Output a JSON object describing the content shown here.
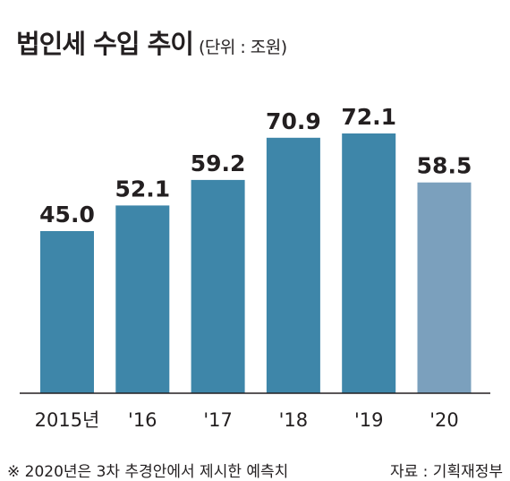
{
  "chart_data": {
    "type": "bar",
    "title": "법인세 수입 추이",
    "unit_note": "(단위 : 조원)",
    "categories": [
      "2015년",
      "'16",
      "'17",
      "'18",
      "'19",
      "'20"
    ],
    "values": [
      45.0,
      52.1,
      59.2,
      70.9,
      72.1,
      58.5
    ],
    "value_labels": [
      "45.0",
      "52.1",
      "59.2",
      "70.9",
      "72.1",
      "58.5"
    ],
    "colors": [
      "#3e86a9",
      "#3e86a9",
      "#3e86a9",
      "#3e86a9",
      "#3e86a9",
      "#7ba0bd"
    ],
    "axis_color": "#231f20",
    "grid": false,
    "legend": "none"
  },
  "footer": {
    "note": "※ 2020년은 3차 추경안에서 제시한 예측치",
    "source": "자료 : 기획재정부"
  }
}
